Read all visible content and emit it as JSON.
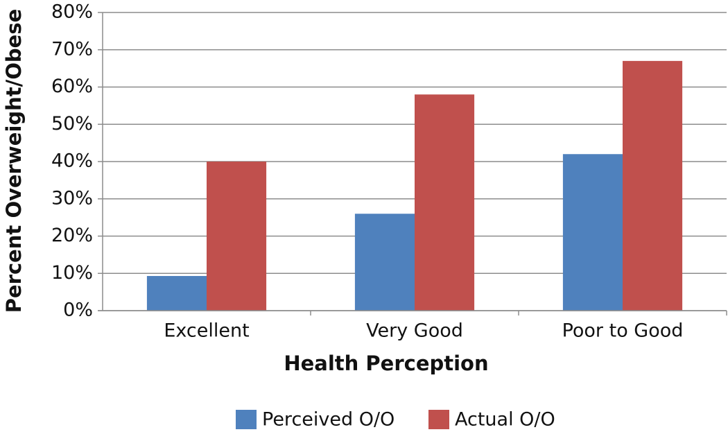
{
  "chart_data": {
    "type": "bar",
    "x_label": "Health Perception",
    "y_label": "Percent Overweight/Obese",
    "categories": [
      "Excellent",
      "Very Good",
      "Poor to Good"
    ],
    "series": [
      {
        "name": "Perceived O/O",
        "color": "#4f81bd",
        "values": [
          9.3,
          26,
          42
        ]
      },
      {
        "name": "Actual O/O",
        "color": "#c0504d",
        "values": [
          40,
          58,
          67
        ]
      }
    ],
    "ylim": [
      0,
      80
    ],
    "yticks": [
      {
        "value": 0,
        "label": "0%"
      },
      {
        "value": 10,
        "label": "10%"
      },
      {
        "value": 20,
        "label": "20%"
      },
      {
        "value": 30,
        "label": "30%"
      },
      {
        "value": 40,
        "label": "40%"
      },
      {
        "value": 50,
        "label": "50%"
      },
      {
        "value": 60,
        "label": "60%"
      },
      {
        "value": 70,
        "label": "70%"
      },
      {
        "value": 80,
        "label": "80%"
      }
    ],
    "grid": true,
    "legend": "bottom"
  }
}
